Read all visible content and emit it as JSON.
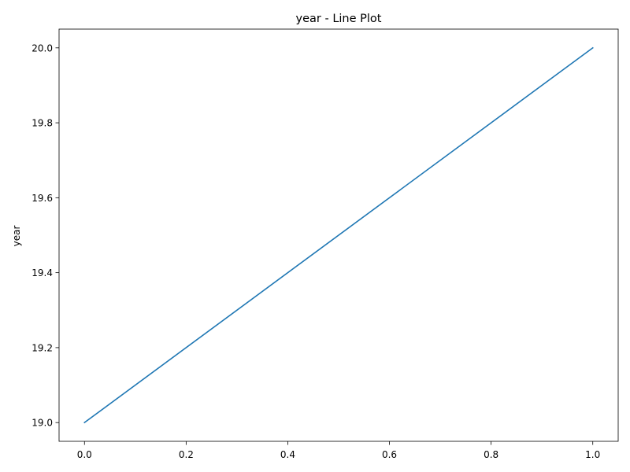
{
  "chart_data": {
    "type": "line",
    "title": "year - Line Plot",
    "xlabel": "",
    "ylabel": "year",
    "xlim": [
      -0.05,
      1.05
    ],
    "ylim": [
      18.95,
      20.05
    ],
    "x_ticks": [
      0.0,
      0.2,
      0.4,
      0.6,
      0.8,
      1.0
    ],
    "x_tick_labels": [
      "0.0",
      "0.2",
      "0.4",
      "0.6",
      "0.8",
      "1.0"
    ],
    "y_ticks": [
      19.0,
      19.2,
      19.4,
      19.6,
      19.8,
      20.0
    ],
    "y_tick_labels": [
      "19.0",
      "19.2",
      "19.4",
      "19.6",
      "19.8",
      "20.0"
    ],
    "grid": false,
    "series": [
      {
        "x": [
          0,
          1
        ],
        "y": [
          19,
          20
        ],
        "color": "#1f77b4"
      }
    ]
  }
}
